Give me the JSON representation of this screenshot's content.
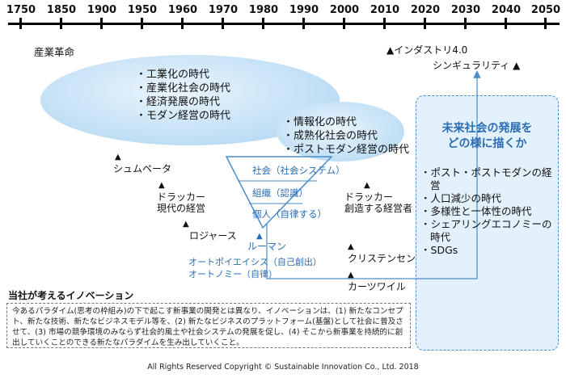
{
  "timeline": {
    "years": [
      "1750",
      "1850",
      "1900",
      "1950",
      "1960",
      "1970",
      "1980",
      "1990",
      "2000",
      "2010",
      "2020",
      "2030",
      "2040",
      "2050"
    ]
  },
  "labels": {
    "industrial_revolution": "産業革命",
    "industry40": "▲インダストリ4.0",
    "singularity": "シンギュラリティ ▲",
    "schumpeter": "シュムペータ",
    "drucker1_name": "ドラッカー",
    "drucker1_sub": "現代の経営",
    "rogers": "ロジャース",
    "luhmann": "ルーマン",
    "drucker2_name": "ドラッカー",
    "drucker2_sub": "創造する経営者",
    "christensen": "クリステンセン",
    "kurzweil": "カーツワイル",
    "autopoiesis": "オートポイエイシス（自己創出）",
    "autonomy": "オートノミー（自律）",
    "triangle_marker": "▲"
  },
  "era1": [
    "工業化の時代",
    "産業化社会の時代",
    "経済発展の時代",
    "モダン経営の時代"
  ],
  "era2": [
    "情報化の時代",
    "成熟化社会の時代",
    "ポストモダン経営の時代"
  ],
  "triangle": {
    "society": "社会（社会システム）",
    "organization": "組織（認識）",
    "individual": "個人（自律する）"
  },
  "future": {
    "title_line1": "未来社会の発展を",
    "title_line2": "どの様に描くか",
    "items": [
      "ポスト・ポストモダンの経営",
      "人口減少の時代",
      "多様性と一体性の時代",
      "シェアリングエコノミーの時代",
      "SDGs"
    ]
  },
  "innovation": {
    "title": "当社が考えるイノベーション",
    "body": "今あるパラダイム(思考の枠組み)の下で起こす新事業の開発とは異なり、イノベーションは、(1) 新たなコンセプト、新たな技術、新たなビジネスモデル等を、(2) 新たなビジネスのプラットフォーム(基盤)として社会に普及させて、(3) 市場の競争環境のみならず社会的風土や社会システムの発展を促し、(4) そこから新事業を持続的に創出していくことのできる新たなパラダイムを生み出していくこと。"
  },
  "footer": "All Rights Reserved  Copyright © Sustainable Innovation  Co., Ltd.  2018",
  "colors": {
    "accent_blue": "#2a6db5",
    "ellipse_blue": "#b7d9f3",
    "future_bg": "#e2f1fb"
  }
}
